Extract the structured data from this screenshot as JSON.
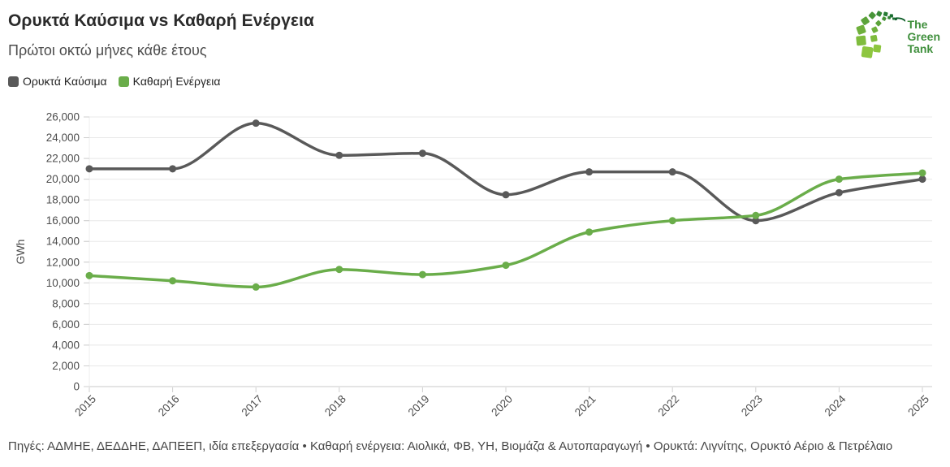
{
  "header": {
    "title": "Ορυκτά Καύσιμα vs Καθαρή Ενέργεια",
    "subtitle": "Πρώτοι οκτώ μήνες κάθε έτους"
  },
  "logo": {
    "name_lines": [
      "The",
      "Green",
      "Tank"
    ]
  },
  "chart_data": {
    "type": "line",
    "x": [
      "2015",
      "2016",
      "2017",
      "2018",
      "2019",
      "2020",
      "2021",
      "2022",
      "2023",
      "2024",
      "2025"
    ],
    "series": [
      {
        "name": "Ορυκτά Καύσιμα",
        "color": "#595959",
        "values": [
          21000,
          21000,
          25400,
          22300,
          22500,
          18500,
          20700,
          20700,
          16000,
          18700,
          20000
        ]
      },
      {
        "name": "Καθαρή Ενέργεια",
        "color": "#6aad4a",
        "values": [
          10700,
          10200,
          9600,
          11300,
          10800,
          11700,
          14900,
          16000,
          16500,
          20000,
          20600
        ]
      }
    ],
    "legend": [
      {
        "label": "Ορυκτά Καύσιμα",
        "color": "#595959"
      },
      {
        "label": "Καθαρή Ενέργεια",
        "color": "#6aad4a"
      }
    ],
    "ylabel": "GWh",
    "ylim": [
      0,
      26000
    ],
    "yticks": [
      0,
      2000,
      4000,
      6000,
      8000,
      10000,
      12000,
      14000,
      16000,
      18000,
      20000,
      22000,
      24000,
      26000
    ],
    "ytick_labels": [
      "0",
      "2,000",
      "4,000",
      "6,000",
      "8,000",
      "10,000",
      "12,000",
      "14,000",
      "16,000",
      "18,000",
      "20,000",
      "22,000",
      "24,000",
      "26,000"
    ],
    "grid": "horizontal",
    "legend_position": "top-left",
    "smooth": true,
    "markers": true
  },
  "footer": {
    "sources": "Πηγές: ΑΔΜΗΕ, ΔΕΔΔΗΕ, ΔΑΠΕΕΠ, ιδία επεξεργασία • Καθαρή ενέργεια: Αιολικά, ΦΒ, ΥΗ, Βιομάζα & Αυτοπαραγωγή • Ορυκτά: Λιγνίτης, Ορυκτό Αέριο & Πετρέλαιο"
  }
}
